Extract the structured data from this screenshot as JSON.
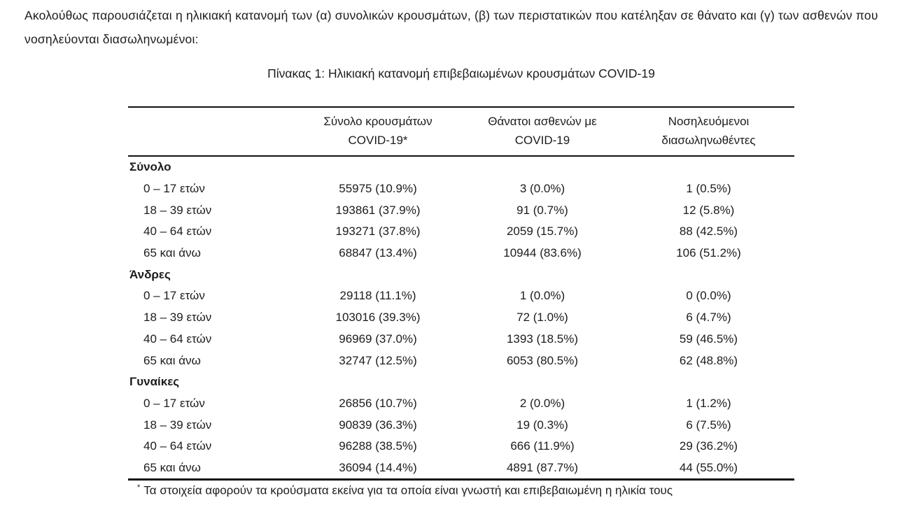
{
  "intro": {
    "text": "Ακολούθως παρουσιάζεται η ηλικιακή κατανομή των (α) συνολικών κρουσμάτων, (β) των περιστατικών που κατέληξαν σε θάνατο και (γ) των ασθενών που νοσηλεύονται διασωληνωμένοι:"
  },
  "table": {
    "title": "Πίνακας 1: Ηλικιακή κατανομή επιβεβαιωμένων κρουσμάτων COVID-19",
    "columns": [
      {
        "line1": "Σύνολο κρουσμάτων",
        "line2": "COVID-19*"
      },
      {
        "line1": "Θάνατοι ασθενών με",
        "line2": "COVID-19"
      },
      {
        "line1": "Νοσηλευόμενοι",
        "line2": "διασωληνωθέντες"
      }
    ],
    "sections": [
      {
        "label": "Σύνολο",
        "rows": [
          {
            "age": "0 – 17 ετών",
            "cases": "55975 (10.9%)",
            "deaths": "3 (0.0%)",
            "intubated": "1 (0.5%)"
          },
          {
            "age": "18 – 39 ετών",
            "cases": "193861 (37.9%)",
            "deaths": "91 (0.7%)",
            "intubated": "12 (5.8%)"
          },
          {
            "age": "40 – 64 ετών",
            "cases": "193271 (37.8%)",
            "deaths": "2059 (15.7%)",
            "intubated": "88 (42.5%)"
          },
          {
            "age": "65 και άνω",
            "cases": "68847 (13.4%)",
            "deaths": "10944 (83.6%)",
            "intubated": "106 (51.2%)"
          }
        ]
      },
      {
        "label": "Άνδρες",
        "rows": [
          {
            "age": "0 – 17 ετών",
            "cases": "29118 (11.1%)",
            "deaths": "1 (0.0%)",
            "intubated": "0 (0.0%)"
          },
          {
            "age": "18 – 39 ετών",
            "cases": "103016 (39.3%)",
            "deaths": "72 (1.0%)",
            "intubated": "6 (4.7%)"
          },
          {
            "age": "40 – 64 ετών",
            "cases": "96969 (37.0%)",
            "deaths": "1393 (18.5%)",
            "intubated": "59 (46.5%)"
          },
          {
            "age": "65 και άνω",
            "cases": "32747 (12.5%)",
            "deaths": "6053 (80.5%)",
            "intubated": "62 (48.8%)"
          }
        ]
      },
      {
        "label": "Γυναίκες",
        "rows": [
          {
            "age": "0 – 17 ετών",
            "cases": "26856 (10.7%)",
            "deaths": "2 (0.0%)",
            "intubated": "1 (1.2%)"
          },
          {
            "age": "18 – 39 ετών",
            "cases": "90839 (36.3%)",
            "deaths": "19 (0.3%)",
            "intubated": "6 (7.5%)"
          },
          {
            "age": "40 – 64 ετών",
            "cases": "96288 (38.5%)",
            "deaths": "666 (11.9%)",
            "intubated": "29 (36.2%)"
          },
          {
            "age": "65 και άνω",
            "cases": "36094 (14.4%)",
            "deaths": "4891 (87.7%)",
            "intubated": "44 (55.0%)"
          }
        ]
      }
    ],
    "footnote_marker": "*",
    "footnote_text": "Τα στοιχεία αφορούν τα κρούσματα εκείνα για τα οποία είναι γνωστή και επιβεβαιωμένη η ηλικία τους"
  }
}
